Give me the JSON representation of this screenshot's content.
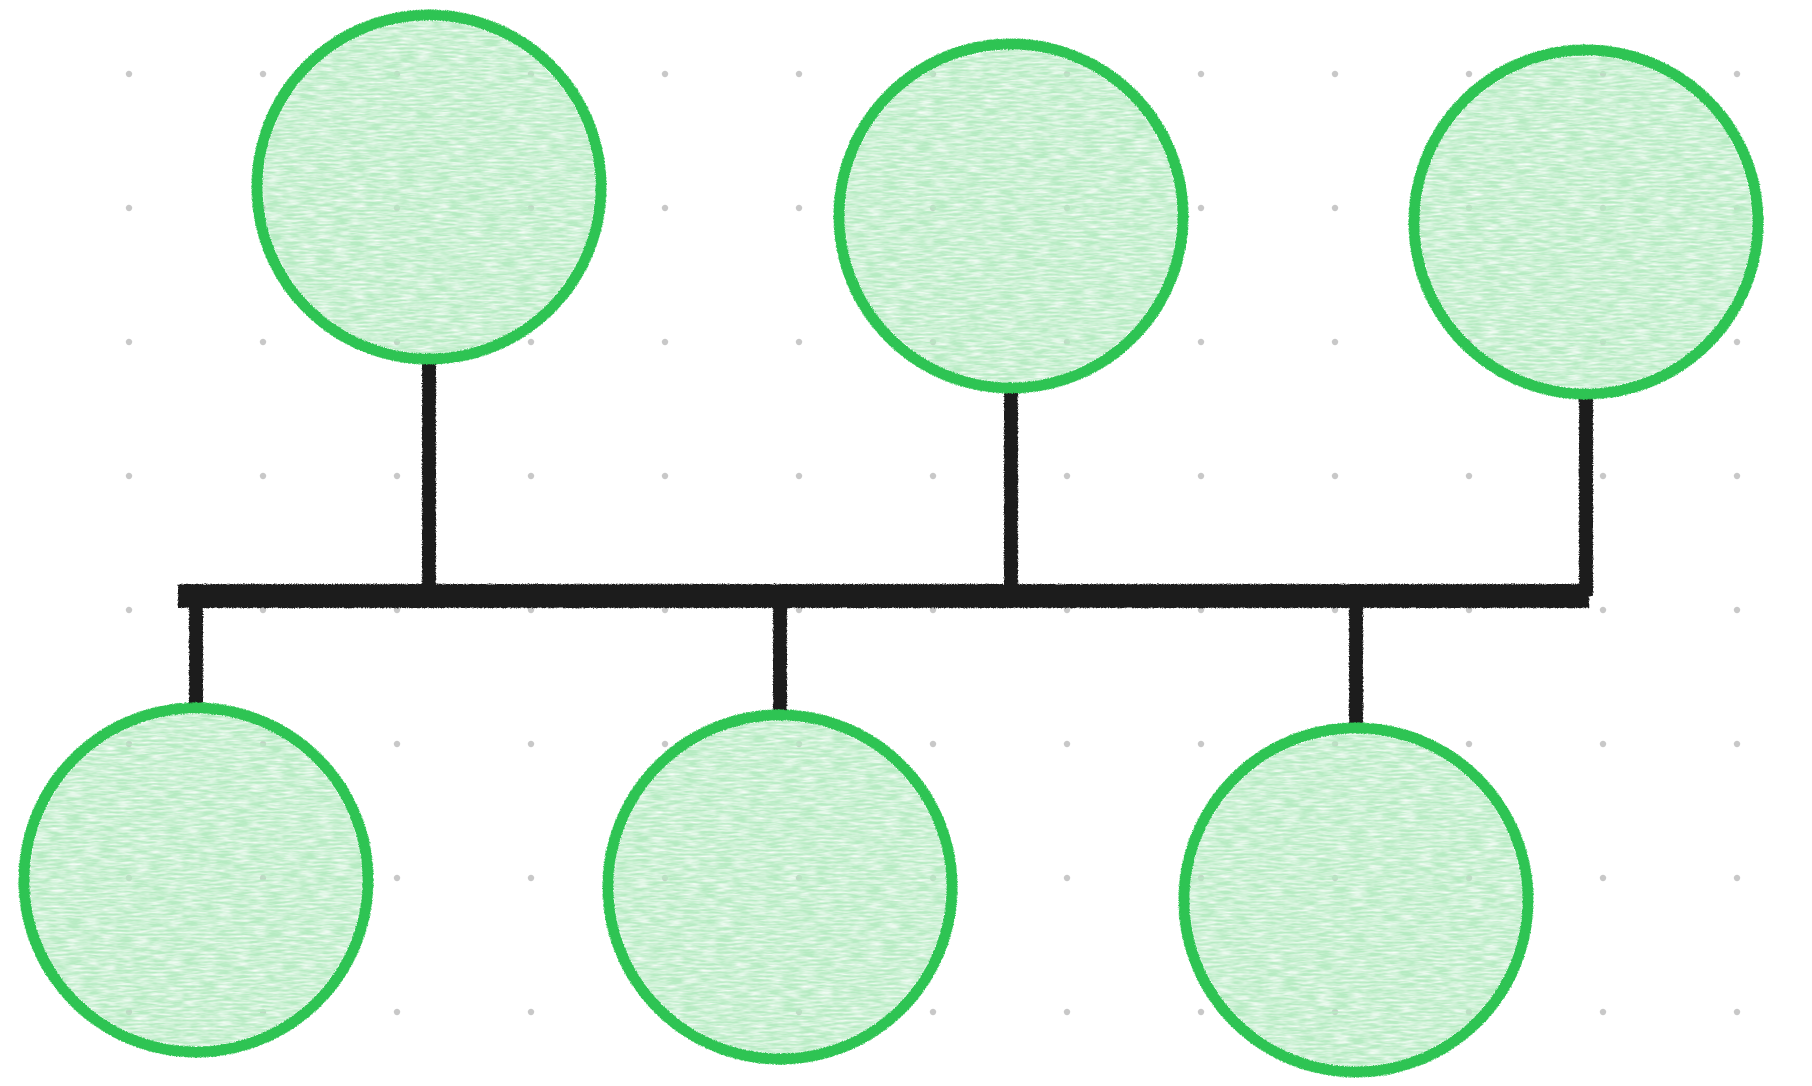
{
  "diagram": {
    "type": "bus-topology",
    "background": "#ffffff",
    "grid": {
      "visible": true,
      "style": "dots",
      "dot_color": "#c8c8c8"
    },
    "bus": {
      "color": "#1a1a1a"
    },
    "node_style": {
      "stroke": "#2ec452",
      "fill": "#b6ebc2"
    },
    "nodes": [
      {
        "id": "node-top-1",
        "row": "top",
        "label": ""
      },
      {
        "id": "node-top-2",
        "row": "top",
        "label": ""
      },
      {
        "id": "node-top-3",
        "row": "top",
        "label": ""
      },
      {
        "id": "node-bottom-1",
        "row": "bottom",
        "label": ""
      },
      {
        "id": "node-bottom-2",
        "row": "bottom",
        "label": ""
      },
      {
        "id": "node-bottom-3",
        "row": "bottom",
        "label": ""
      }
    ]
  }
}
